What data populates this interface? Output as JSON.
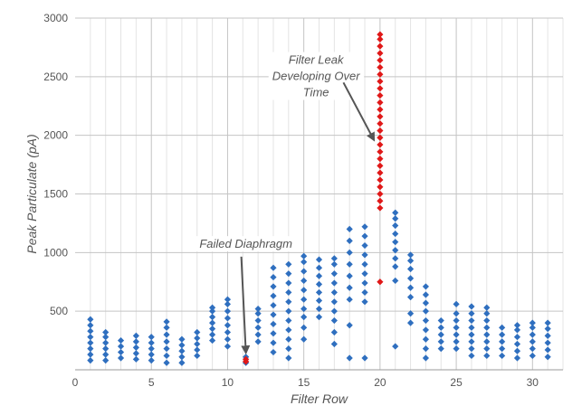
{
  "chart_data": {
    "type": "scatter",
    "xlabel": "Filter Row",
    "ylabel": "Peak Particulate (pA)",
    "xlim": [
      0,
      32
    ],
    "ylim": [
      0,
      3000
    ],
    "x_ticks": [
      0,
      5,
      10,
      15,
      20,
      25,
      30
    ],
    "y_ticks": [
      500,
      1000,
      1500,
      2000,
      2500,
      3000
    ],
    "grid": true,
    "minor_x_grid": true,
    "colors": {
      "normal": "#2f6fbf",
      "anomaly": "#e01818",
      "grid_major": "#c4c4c4",
      "grid_minor": "#e4e4e4",
      "arrow": "#555555"
    },
    "series": [
      {
        "color": "#2f6fbf",
        "points": [
          [
            1,
            80
          ],
          [
            1,
            130
          ],
          [
            1,
            180
          ],
          [
            1,
            230
          ],
          [
            1,
            280
          ],
          [
            1,
            330
          ],
          [
            1,
            380
          ],
          [
            1,
            430
          ],
          [
            2,
            80
          ],
          [
            2,
            130
          ],
          [
            2,
            180
          ],
          [
            2,
            230
          ],
          [
            2,
            280
          ],
          [
            2,
            320
          ],
          [
            3,
            100
          ],
          [
            3,
            150
          ],
          [
            3,
            200
          ],
          [
            3,
            250
          ],
          [
            4,
            90
          ],
          [
            4,
            140
          ],
          [
            4,
            190
          ],
          [
            4,
            240
          ],
          [
            4,
            290
          ],
          [
            5,
            80
          ],
          [
            5,
            130
          ],
          [
            5,
            180
          ],
          [
            5,
            230
          ],
          [
            5,
            280
          ],
          [
            6,
            60
          ],
          [
            6,
            120
          ],
          [
            6,
            180
          ],
          [
            6,
            240
          ],
          [
            6,
            300
          ],
          [
            6,
            360
          ],
          [
            6,
            410
          ],
          [
            7,
            60
          ],
          [
            7,
            110
          ],
          [
            7,
            160
          ],
          [
            7,
            210
          ],
          [
            7,
            260
          ],
          [
            8,
            120
          ],
          [
            8,
            170
          ],
          [
            8,
            220
          ],
          [
            8,
            270
          ],
          [
            8,
            320
          ],
          [
            9,
            250
          ],
          [
            9,
            300
          ],
          [
            9,
            350
          ],
          [
            9,
            400
          ],
          [
            9,
            450
          ],
          [
            9,
            500
          ],
          [
            9,
            530
          ],
          [
            10,
            200
          ],
          [
            10,
            260
          ],
          [
            10,
            320
          ],
          [
            10,
            380
          ],
          [
            10,
            440
          ],
          [
            10,
            500
          ],
          [
            10,
            560
          ],
          [
            10,
            600
          ],
          [
            11.2,
            60
          ],
          [
            11.2,
            110
          ],
          [
            12,
            240
          ],
          [
            12,
            300
          ],
          [
            12,
            360
          ],
          [
            12,
            420
          ],
          [
            12,
            480
          ],
          [
            12,
            520
          ],
          [
            13,
            150
          ],
          [
            13,
            230
          ],
          [
            13,
            310
          ],
          [
            13,
            390
          ],
          [
            13,
            470
          ],
          [
            13,
            550
          ],
          [
            13,
            630
          ],
          [
            13,
            710
          ],
          [
            13,
            790
          ],
          [
            13,
            870
          ],
          [
            14,
            100
          ],
          [
            14,
            180
          ],
          [
            14,
            260
          ],
          [
            14,
            340
          ],
          [
            14,
            420
          ],
          [
            14,
            500
          ],
          [
            14,
            580
          ],
          [
            14,
            660
          ],
          [
            14,
            740
          ],
          [
            14,
            820
          ],
          [
            14,
            900
          ],
          [
            15,
            260
          ],
          [
            15,
            360
          ],
          [
            15,
            450
          ],
          [
            15,
            520
          ],
          [
            15,
            600
          ],
          [
            15,
            680
          ],
          [
            15,
            760
          ],
          [
            15,
            840
          ],
          [
            15,
            920
          ],
          [
            15,
            970
          ],
          [
            16,
            450
          ],
          [
            16,
            520
          ],
          [
            16,
            590
          ],
          [
            16,
            660
          ],
          [
            16,
            730
          ],
          [
            16,
            800
          ],
          [
            16,
            870
          ],
          [
            16,
            940
          ],
          [
            17,
            220
          ],
          [
            17,
            320
          ],
          [
            17,
            420
          ],
          [
            17,
            500
          ],
          [
            17,
            580
          ],
          [
            17,
            660
          ],
          [
            17,
            740
          ],
          [
            17,
            820
          ],
          [
            17,
            900
          ],
          [
            17,
            950
          ],
          [
            18,
            100
          ],
          [
            18,
            380
          ],
          [
            18,
            600
          ],
          [
            18,
            700
          ],
          [
            18,
            800
          ],
          [
            18,
            900
          ],
          [
            18,
            1000
          ],
          [
            18,
            1100
          ],
          [
            18,
            1200
          ],
          [
            19,
            100
          ],
          [
            19,
            580
          ],
          [
            19,
            660
          ],
          [
            19,
            740
          ],
          [
            19,
            820
          ],
          [
            19,
            900
          ],
          [
            19,
            980
          ],
          [
            19,
            1060
          ],
          [
            19,
            1140
          ],
          [
            19,
            1220
          ],
          [
            21,
            200
          ],
          [
            21,
            760
          ],
          [
            21,
            880
          ],
          [
            21,
            950
          ],
          [
            21,
            1020
          ],
          [
            21,
            1090
          ],
          [
            21,
            1160
          ],
          [
            21,
            1230
          ],
          [
            21,
            1290
          ],
          [
            21,
            1340
          ],
          [
            22,
            400
          ],
          [
            22,
            480
          ],
          [
            22,
            620
          ],
          [
            22,
            700
          ],
          [
            22,
            780
          ],
          [
            22,
            860
          ],
          [
            22,
            930
          ],
          [
            22,
            980
          ],
          [
            23,
            100
          ],
          [
            23,
            180
          ],
          [
            23,
            260
          ],
          [
            23,
            340
          ],
          [
            23,
            420
          ],
          [
            23,
            500
          ],
          [
            23,
            570
          ],
          [
            23,
            640
          ],
          [
            23,
            710
          ],
          [
            24,
            180
          ],
          [
            24,
            240
          ],
          [
            24,
            300
          ],
          [
            24,
            360
          ],
          [
            24,
            420
          ],
          [
            25,
            180
          ],
          [
            25,
            240
          ],
          [
            25,
            300
          ],
          [
            25,
            360
          ],
          [
            25,
            420
          ],
          [
            25,
            480
          ],
          [
            25,
            560
          ],
          [
            26,
            120
          ],
          [
            26,
            180
          ],
          [
            26,
            240
          ],
          [
            26,
            300
          ],
          [
            26,
            360
          ],
          [
            26,
            420
          ],
          [
            26,
            480
          ],
          [
            26,
            540
          ],
          [
            27,
            120
          ],
          [
            27,
            180
          ],
          [
            27,
            240
          ],
          [
            27,
            300
          ],
          [
            27,
            360
          ],
          [
            27,
            420
          ],
          [
            27,
            480
          ],
          [
            27,
            530
          ],
          [
            28,
            120
          ],
          [
            28,
            180
          ],
          [
            28,
            240
          ],
          [
            28,
            300
          ],
          [
            28,
            360
          ],
          [
            29,
            100
          ],
          [
            29,
            160
          ],
          [
            29,
            220
          ],
          [
            29,
            280
          ],
          [
            29,
            340
          ],
          [
            29,
            380
          ],
          [
            30,
            120
          ],
          [
            30,
            180
          ],
          [
            30,
            240
          ],
          [
            30,
            300
          ],
          [
            30,
            360
          ],
          [
            30,
            400
          ],
          [
            31,
            110
          ],
          [
            31,
            170
          ],
          [
            31,
            230
          ],
          [
            31,
            290
          ],
          [
            31,
            350
          ],
          [
            31,
            400
          ]
        ]
      },
      {
        "color": "#e01818",
        "points": [
          [
            11.2,
            70
          ],
          [
            11.2,
            90
          ],
          [
            20,
            750
          ],
          [
            20,
            1380
          ],
          [
            20,
            1440
          ],
          [
            20,
            1500
          ],
          [
            20,
            1560
          ],
          [
            20,
            1620
          ],
          [
            20,
            1680
          ],
          [
            20,
            1740
          ],
          [
            20,
            1800
          ],
          [
            20,
            1860
          ],
          [
            20,
            1920
          ],
          [
            20,
            1980
          ],
          [
            20,
            2040
          ],
          [
            20,
            2100
          ],
          [
            20,
            2160
          ],
          [
            20,
            2220
          ],
          [
            20,
            2280
          ],
          [
            20,
            2340
          ],
          [
            20,
            2400
          ],
          [
            20,
            2460
          ],
          [
            20,
            2520
          ],
          [
            20,
            2580
          ],
          [
            20,
            2640
          ],
          [
            20,
            2700
          ],
          [
            20,
            2760
          ],
          [
            20,
            2820
          ],
          [
            20,
            2860
          ]
        ]
      }
    ],
    "annotations": [
      {
        "text_lines": [
          "Failed Diaphragm"
        ],
        "anchor": "middle",
        "text_at": [
          11.2,
          1040
        ],
        "arrow_from": [
          10.9,
          965
        ],
        "arrow_to": [
          11.2,
          145
        ]
      },
      {
        "text_lines": [
          "Filter Leak",
          "Developing Over",
          "Time"
        ],
        "anchor": "middle",
        "text_at": [
          15.8,
          2610
        ],
        "arrow_from": [
          17.6,
          2450
        ],
        "arrow_to": [
          19.6,
          1960
        ]
      }
    ]
  }
}
